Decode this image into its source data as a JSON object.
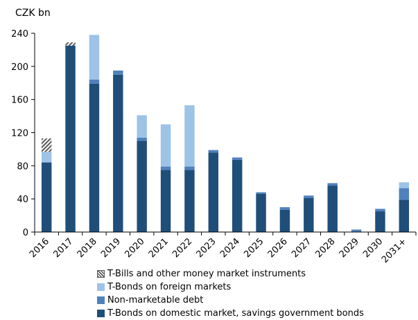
{
  "chart_data": {
    "type": "bar",
    "stacked": true,
    "ylabel": "CZK bn",
    "ylim": [
      0,
      240
    ],
    "yticks": [
      0,
      40,
      80,
      120,
      160,
      200,
      240
    ],
    "grid": false,
    "legend_position": "bottom",
    "categories": [
      "2016",
      "2017",
      "2018",
      "2019",
      "2020",
      "2021",
      "2022",
      "2023",
      "2024",
      "2025",
      "2026",
      "2027",
      "2028",
      "2029",
      "2030",
      "2031+"
    ],
    "series": [
      {
        "name": "T-Bonds on domestic market, savings government bonds",
        "color": "#1f4e79",
        "pattern": false,
        "values": [
          84,
          225,
          179,
          190,
          110,
          75,
          75,
          96,
          87,
          46,
          27,
          41,
          56,
          0,
          25,
          39
        ]
      },
      {
        "name": "Non-marketable debt",
        "color": "#4f81bd",
        "pattern": false,
        "values": [
          0,
          0,
          5,
          5,
          4,
          4,
          4,
          3,
          3,
          2,
          3,
          3,
          3,
          3,
          3,
          14
        ]
      },
      {
        "name": "T-Bonds on foreign markets",
        "color": "#9dc3e6",
        "pattern": false,
        "values": [
          13,
          0,
          54,
          0,
          27,
          51,
          74,
          0,
          0,
          0,
          0,
          0,
          0,
          0,
          0,
          7
        ]
      },
      {
        "name": "T-Bills and other money market instruments",
        "color": "#595959",
        "pattern": true,
        "values": [
          16,
          4,
          0,
          0,
          0,
          0,
          0,
          0,
          0,
          0,
          0,
          0,
          0,
          0,
          0,
          0
        ]
      }
    ],
    "legend_order": [
      3,
      2,
      1,
      0
    ]
  }
}
